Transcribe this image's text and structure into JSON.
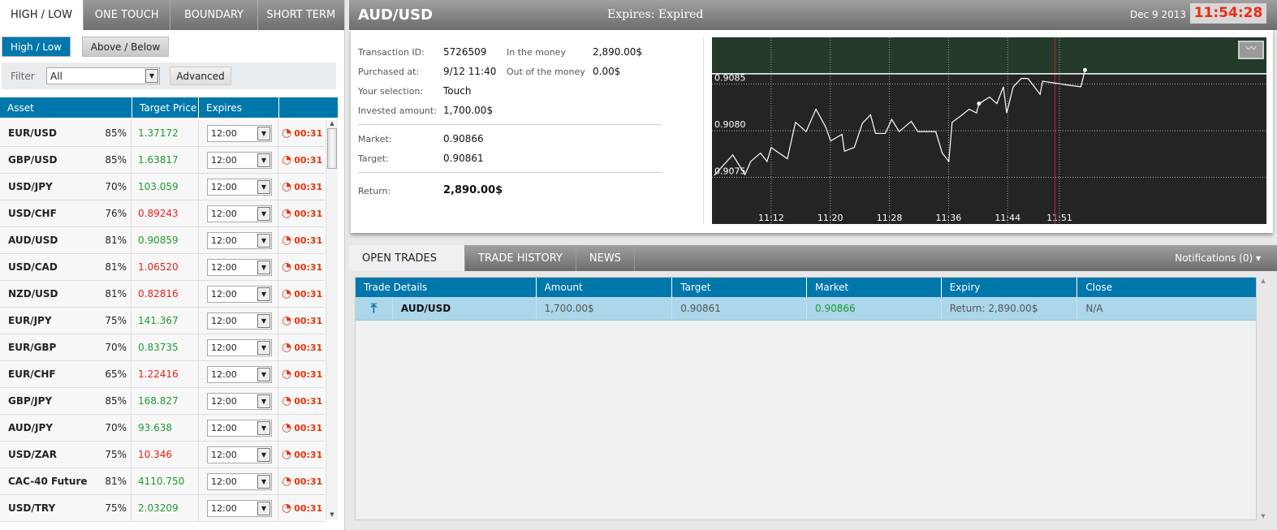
{
  "left_panel": {
    "tabs": [
      "HIGH / LOW",
      "ONE TOUCH",
      "BOUNDARY",
      "SHORT TERM"
    ],
    "sub_buttons": [
      "High / Low",
      "Above / Below"
    ],
    "filter_label": "Filter",
    "filter_value": "All",
    "advanced_label": "Advanced",
    "columns": [
      "Asset",
      "Target Price",
      "Expires",
      ""
    ],
    "assets": [
      {
        "name": "EUR/USD",
        "pct": "85%",
        "price": "1.37172",
        "dir": "up",
        "expires": "12:00",
        "timer": "00:31"
      },
      {
        "name": "GBP/USD",
        "pct": "85%",
        "price": "1.63817",
        "dir": "up",
        "expires": "12:00",
        "timer": "00:31"
      },
      {
        "name": "USD/JPY",
        "pct": "70%",
        "price": "103.059",
        "dir": "up",
        "expires": "12:00",
        "timer": "00:31"
      },
      {
        "name": "USD/CHF",
        "pct": "76%",
        "price": "0.89243",
        "dir": "down",
        "expires": "12:00",
        "timer": "00:31"
      },
      {
        "name": "AUD/USD",
        "pct": "81%",
        "price": "0.90859",
        "dir": "up",
        "expires": "12:00",
        "timer": "00:31"
      },
      {
        "name": "USD/CAD",
        "pct": "81%",
        "price": "1.06520",
        "dir": "down",
        "expires": "12:00",
        "timer": "00:31"
      },
      {
        "name": "NZD/USD",
        "pct": "81%",
        "price": "0.82816",
        "dir": "down",
        "expires": "12:00",
        "timer": "00:31"
      },
      {
        "name": "EUR/JPY",
        "pct": "75%",
        "price": "141.367",
        "dir": "up",
        "expires": "12:00",
        "timer": "00:31"
      },
      {
        "name": "EUR/GBP",
        "pct": "70%",
        "price": "0.83735",
        "dir": "up",
        "expires": "12:00",
        "timer": "00:31"
      },
      {
        "name": "EUR/CHF",
        "pct": "65%",
        "price": "1.22416",
        "dir": "down",
        "expires": "12:00",
        "timer": "00:31"
      },
      {
        "name": "GBP/JPY",
        "pct": "85%",
        "price": "168.827",
        "dir": "up",
        "expires": "12:00",
        "timer": "00:31"
      },
      {
        "name": "AUD/JPY",
        "pct": "70%",
        "price": "93.638",
        "dir": "up",
        "expires": "12:00",
        "timer": "00:31"
      },
      {
        "name": "USD/ZAR",
        "pct": "75%",
        "price": "10.346",
        "dir": "down",
        "expires": "12:00",
        "timer": "00:31"
      },
      {
        "name": "CAC-40 Future",
        "pct": "81%",
        "price": "4110.750",
        "dir": "up",
        "expires": "12:00",
        "timer": "00:31"
      },
      {
        "name": "USD/TRY",
        "pct": "75%",
        "price": "2.03209",
        "dir": "up",
        "expires": "12:00",
        "timer": "00:31"
      }
    ]
  },
  "header": {
    "asset": "AUD/USD",
    "expires": "Expires:  Expired",
    "date": "Dec 9 2013",
    "clock": "11:54:28"
  },
  "details": {
    "transaction_id_label": "Transaction ID:",
    "transaction_id": "5726509",
    "purchased_label": "Purchased at:",
    "purchased": "9/12 11:40",
    "selection_label": "Your selection:",
    "selection": "Touch",
    "invested_label": "Invested amount:",
    "invested": "1,700.00$",
    "itm_label": "In the money",
    "itm": "2,890.00$",
    "otm_label": "Out of the money",
    "otm": "0.00$",
    "market_label": "Market:",
    "market": "0.90866",
    "target_label": "Target:",
    "target": "0.90861",
    "return_label": "Return:",
    "return": "2,890.00$"
  },
  "chart_data": {
    "type": "line",
    "x_ticks": [
      "11:12",
      "11:20",
      "11:28",
      "11:36",
      "11:44",
      "11:51"
    ],
    "y_ticks": [
      "0.9085",
      "0.9080",
      "0.9075"
    ],
    "xlim": [
      "11:04:00",
      "12:19:00"
    ],
    "ylim": [
      0.907,
      0.909
    ],
    "target_line": 0.90861,
    "expiry_time": "11:50:24",
    "colors": {
      "background": "#242424",
      "above_target": "#233a2b",
      "line": "#ffffff",
      "expiry": "#cc2020"
    },
    "grid": true,
    "points": [
      [
        "11:04:17",
        0.90752
      ],
      [
        "11:06:49",
        0.90774
      ],
      [
        "11:08:28",
        0.90753
      ],
      [
        "11:09:14",
        0.90767
      ],
      [
        "11:10:34",
        0.90776
      ],
      [
        "11:11:27",
        0.90767
      ],
      [
        "11:12:00",
        0.90782
      ],
      [
        "11:14:12",
        0.9077
      ],
      [
        "11:15:18",
        0.90809
      ],
      [
        "11:16:44",
        0.90799
      ],
      [
        "11:18:04",
        0.90823
      ],
      [
        "11:19:23",
        0.90804
      ],
      [
        "11:20:03",
        0.90789
      ],
      [
        "11:21:35",
        0.90796
      ],
      [
        "11:21:55",
        0.90778
      ],
      [
        "11:23:15",
        0.90782
      ],
      [
        "11:24:21",
        0.90808
      ],
      [
        "11:25:27",
        0.90817
      ],
      [
        "11:26:07",
        0.90797
      ],
      [
        "11:27:26",
        0.90797
      ],
      [
        "11:28:19",
        0.90812
      ],
      [
        "11:29:19",
        0.90799
      ],
      [
        "11:30:58",
        0.9081
      ],
      [
        "11:31:51",
        0.90799
      ],
      [
        "11:34:16",
        0.90799
      ],
      [
        "11:35:09",
        0.90776
      ],
      [
        "11:36:02",
        0.90767
      ],
      [
        "11:36:29",
        0.90809
      ],
      [
        "11:37:41",
        0.90816
      ],
      [
        "11:38:47",
        0.90823
      ],
      [
        "11:39:47",
        0.90819
      ],
      [
        "11:40:07",
        0.90829
      ],
      [
        "11:41:33",
        0.90836
      ],
      [
        "11:42:32",
        0.90829
      ],
      [
        "11:43:25",
        0.90847
      ],
      [
        "11:43:52",
        0.90819
      ],
      [
        "11:44:45",
        0.90847
      ],
      [
        "11:45:51",
        0.90856
      ],
      [
        "11:46:44",
        0.90856
      ],
      [
        "11:48:23",
        0.90839
      ],
      [
        "11:48:43",
        0.90853
      ],
      [
        "11:52:01",
        0.90849
      ],
      [
        "11:53:54",
        0.90847
      ],
      [
        "11:54:27",
        0.90865
      ]
    ]
  },
  "bottom": {
    "tabs": [
      "OPEN TRADES",
      "TRADE HISTORY",
      "NEWS"
    ],
    "notifications": "Notifications (0) ▾",
    "columns": [
      "Trade Details",
      "Amount",
      "Target",
      "Market",
      "Expiry",
      "Close"
    ],
    "rows": [
      {
        "asset": "AUD/USD",
        "amount": "1,700.00$",
        "target": "0.90861",
        "market": "0.90866",
        "expiry": "Return: 2,890.00$",
        "close": "N/A"
      }
    ]
  }
}
